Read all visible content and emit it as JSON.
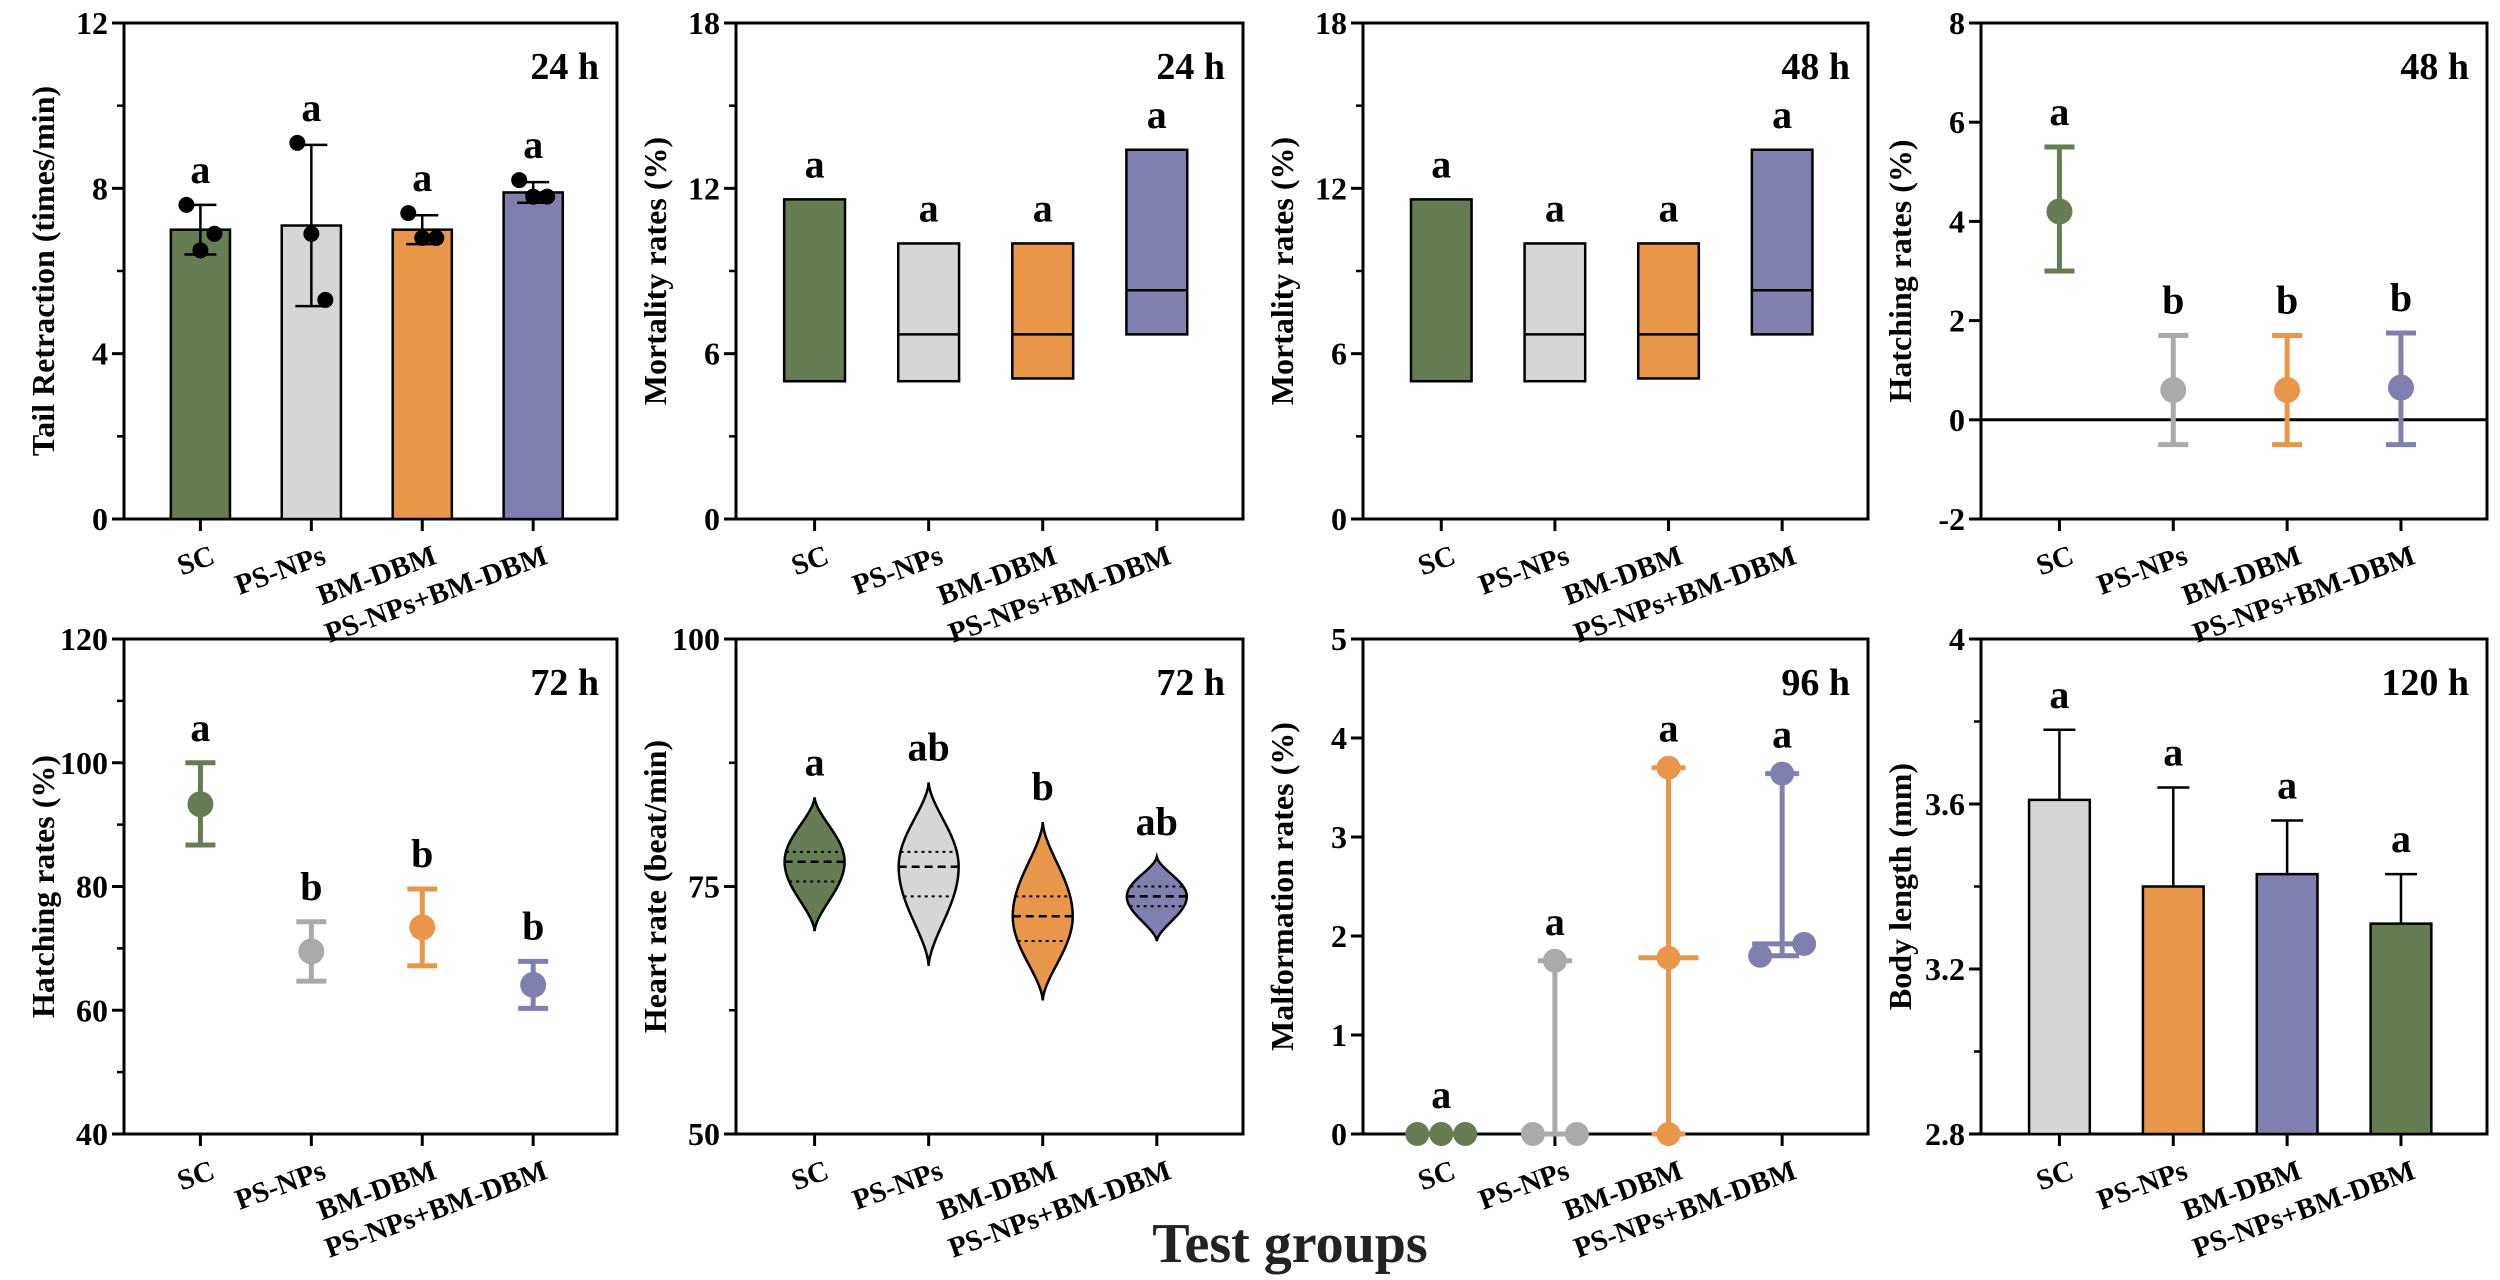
{
  "colors": {
    "SC": "#667c52",
    "PS-NPs": "#d6d6d6",
    "PS-NPs-point": "#aaaaaa",
    "BM-DBM": "#e8964a",
    "PS-NPs+BM-DBM": "#8080b0",
    "axis": "#000000"
  },
  "figure_xlabel": "Test groups",
  "chart_data": [
    {
      "type": "bar",
      "time_label": "24 h",
      "ylabel": "Tail Retraction (times/min)",
      "ylim": [
        0,
        12
      ],
      "yticks": [
        0,
        4,
        8,
        12
      ],
      "minor_step": 2,
      "error": "both",
      "categories": [
        "SC",
        "PS-NPs",
        "BM-DBM",
        "PS-NPs+BM-DBM"
      ],
      "values": [
        7.0,
        7.1,
        7.0,
        7.9
      ],
      "sd": [
        0.6,
        1.95,
        0.35,
        0.25
      ],
      "points": [
        [
          7.6,
          6.5,
          6.9
        ],
        [
          9.1,
          6.9,
          5.3
        ],
        [
          7.4,
          6.8,
          6.8
        ],
        [
          8.2,
          7.8,
          7.8
        ]
      ],
      "letters": [
        "a",
        "a",
        "a",
        "a"
      ],
      "fill": [
        "SC",
        "PS-NPs",
        "BM-DBM",
        "PS-NPs+BM-DBM"
      ]
    },
    {
      "type": "floating",
      "time_label": "24 h",
      "ylabel": "Mortality rates (%)",
      "ylim": [
        0,
        18
      ],
      "yticks": [
        0,
        6,
        12,
        18
      ],
      "minor_step": 3,
      "categories": [
        "SC",
        "PS-NPs",
        "BM-DBM",
        "PS-NPs+BM-DBM"
      ],
      "min": [
        5.0,
        5.0,
        5.1,
        6.7
      ],
      "max": [
        11.6,
        10.0,
        10.0,
        13.4
      ],
      "mean": [
        5.0,
        6.7,
        6.7,
        8.3
      ],
      "letters": [
        "a",
        "a",
        "a",
        "a"
      ],
      "fill": [
        "SC",
        "PS-NPs",
        "BM-DBM",
        "PS-NPs+BM-DBM"
      ]
    },
    {
      "type": "floating",
      "time_label": "48 h",
      "ylabel": "Mortality rates (%)",
      "ylim": [
        0,
        18
      ],
      "yticks": [
        0,
        6,
        12,
        18
      ],
      "minor_step": 3,
      "categories": [
        "SC",
        "PS-NPs",
        "BM-DBM",
        "PS-NPs+BM-DBM"
      ],
      "min": [
        5.0,
        5.0,
        5.1,
        6.7
      ],
      "max": [
        11.6,
        10.0,
        10.0,
        13.4
      ],
      "mean": [
        5.0,
        6.7,
        6.7,
        8.3
      ],
      "letters": [
        "a",
        "a",
        "a",
        "a"
      ],
      "fill": [
        "SC",
        "PS-NPs",
        "BM-DBM",
        "PS-NPs+BM-DBM"
      ]
    },
    {
      "type": "point",
      "time_label": "48 h",
      "ylabel": "Hatching rates (%)",
      "ylim": [
        -2,
        8
      ],
      "yticks": [
        -2,
        0,
        2,
        4,
        6,
        8
      ],
      "minor_step": 0,
      "zero_line": true,
      "categories": [
        "SC",
        "PS-NPs",
        "BM-DBM",
        "PS-NPs+BM-DBM"
      ],
      "values": [
        4.2,
        0.6,
        0.6,
        0.65
      ],
      "lower": [
        3.0,
        -0.5,
        -0.5,
        -0.5
      ],
      "upper": [
        5.5,
        1.7,
        1.7,
        1.75
      ],
      "letters": [
        "a",
        "b",
        "b",
        "b"
      ],
      "fill": [
        "SC",
        "PS-NPs-point",
        "BM-DBM",
        "PS-NPs+BM-DBM"
      ]
    },
    {
      "type": "point",
      "time_label": "72 h",
      "ylabel": "Hatching rates (%)",
      "ylim": [
        40,
        120
      ],
      "yticks": [
        40,
        60,
        80,
        100,
        120
      ],
      "minor_step": 10,
      "categories": [
        "SC",
        "PS-NPs",
        "BM-DBM",
        "PS-NPs+BM-DBM"
      ],
      "values": [
        93.3,
        69.5,
        73.4,
        64.1
      ],
      "lower": [
        86.7,
        64.7,
        67.2,
        60.3
      ],
      "upper": [
        100.0,
        74.3,
        79.6,
        67.9
      ],
      "letters": [
        "a",
        "b",
        "b",
        "b"
      ],
      "fill": [
        "SC",
        "PS-NPs-point",
        "BM-DBM",
        "PS-NPs+BM-DBM"
      ]
    },
    {
      "type": "violin",
      "time_label": "72 h",
      "ylabel": "Heart rate (beat/min)",
      "ylim": [
        50,
        100
      ],
      "yticks": [
        50,
        75,
        100
      ],
      "minor_step": 12.5,
      "categories": [
        "SC",
        "PS-NPs",
        "BM-DBM",
        "PS-NPs+BM-DBM"
      ],
      "min": [
        70.5,
        67.0,
        63.5,
        69.5
      ],
      "q1": [
        75.5,
        74.0,
        69.5,
        73.0
      ],
      "median": [
        77.5,
        77.0,
        72.0,
        74.0
      ],
      "q3": [
        78.5,
        78.5,
        74.0,
        75.0
      ],
      "max": [
        84.0,
        85.5,
        81.5,
        78.0
      ],
      "letters": [
        "a",
        "ab",
        "b",
        "ab"
      ],
      "fill": [
        "SC",
        "PS-NPs",
        "BM-DBM",
        "PS-NPs+BM-DBM"
      ]
    },
    {
      "type": "scatter_range",
      "time_label": "96 h",
      "ylabel": "Malformation rates (%)",
      "ylim": [
        0,
        5
      ],
      "yticks": [
        0,
        1,
        2,
        3,
        4,
        5
      ],
      "minor_step": 0,
      "categories": [
        "SC",
        "PS-NPs",
        "BM-DBM",
        "PS-NPs+BM-DBM"
      ],
      "points": [
        [
          0,
          0,
          0
        ],
        [
          0,
          0,
          1.75
        ],
        [
          0,
          1.78,
          3.7
        ],
        [
          1.8,
          1.92,
          3.64
        ]
      ],
      "letters": [
        "a",
        "a",
        "a",
        "a"
      ],
      "fill": [
        "SC",
        "PS-NPs-point",
        "BM-DBM",
        "PS-NPs+BM-DBM"
      ]
    },
    {
      "type": "bar",
      "time_label": "120 h",
      "ylabel": "Body length (mm)",
      "ylim": [
        2.8,
        4.0
      ],
      "yticks": [
        2.8,
        3.2,
        3.6,
        4.0
      ],
      "minor_step": 0.2,
      "error": "upper",
      "categories": [
        "SC",
        "PS-NPs",
        "BM-DBM",
        "PS-NPs+BM-DBM"
      ],
      "values": [
        3.61,
        3.4,
        3.43,
        3.31
      ],
      "sd": [
        0.17,
        0.24,
        0.13,
        0.12
      ],
      "letters": [
        "a",
        "a",
        "a",
        "a"
      ],
      "fill": [
        "PS-NPs",
        "BM-DBM",
        "PS-NPs+BM-DBM",
        "SC"
      ]
    }
  ]
}
